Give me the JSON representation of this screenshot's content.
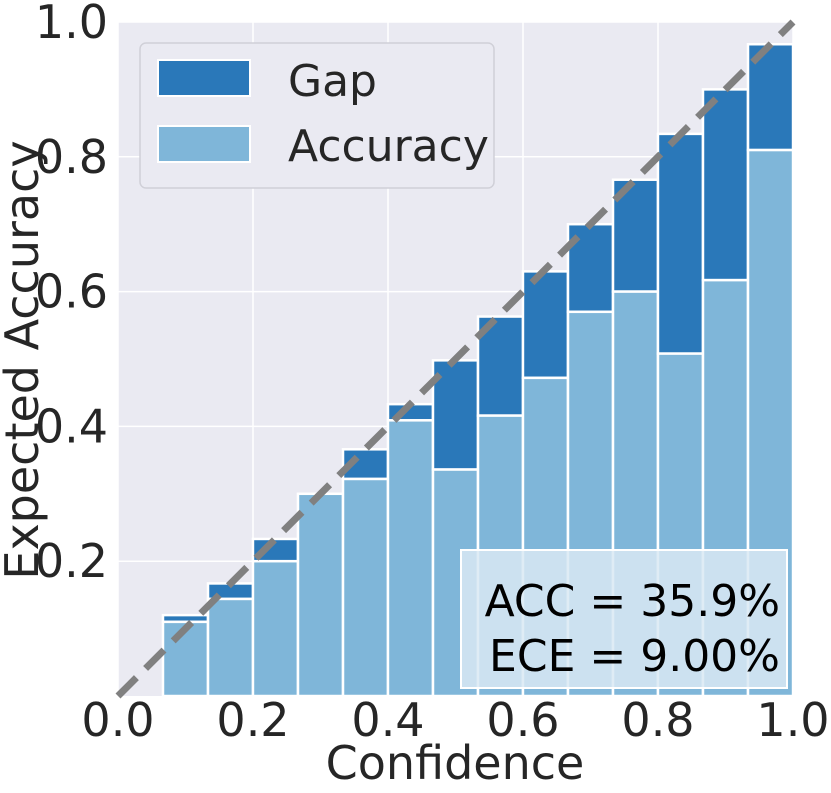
{
  "chart_data": {
    "type": "bar",
    "xlabel": "Confidence",
    "ylabel": "Expected Accuracy",
    "xlim": [
      0.0,
      1.0
    ],
    "ylim": [
      0.0,
      1.0
    ],
    "x_ticks": [
      "0.0",
      "0.2",
      "0.4",
      "0.6",
      "0.8",
      "1.0"
    ],
    "y_ticks": [
      "0.2",
      "0.4",
      "0.6",
      "0.8",
      "1.0"
    ],
    "grid": true,
    "legend_position": "upper-left",
    "bin_width": 0.0667,
    "bin_centers": [
      0.1,
      0.1667,
      0.2333,
      0.3,
      0.3667,
      0.4333,
      0.5,
      0.5667,
      0.6333,
      0.7,
      0.7667,
      0.8333,
      0.9,
      0.9667
    ],
    "series": [
      {
        "name": "Accuracy",
        "color": "#7fb6d9",
        "values": [
          0.11,
          0.144,
          0.2,
          0.3,
          0.322,
          0.409,
          0.336,
          0.416,
          0.472,
          0.57,
          0.6,
          0.508,
          0.617,
          0.81
        ]
      },
      {
        "name": "Gap",
        "color": "#2a78b9",
        "values": [
          0.12,
          0.167,
          0.233,
          0.3,
          0.366,
          0.433,
          0.498,
          0.563,
          0.63,
          0.7,
          0.766,
          0.834,
          0.9,
          0.967
        ]
      }
    ],
    "diagonal": {
      "from": [
        0,
        0
      ],
      "to": [
        1,
        1
      ],
      "color": "#808080",
      "style": "dashed"
    },
    "annotations": [
      "ACC = 35.9%",
      "ECE = 9.00%"
    ]
  },
  "colors": {
    "plot_background": "#eaeaf2",
    "grid": "#ffffff",
    "gap": "#2a78b9",
    "accuracy": "#7fb6d9",
    "diagonal": "#808080",
    "annotation_box": "#d9e9f3"
  }
}
